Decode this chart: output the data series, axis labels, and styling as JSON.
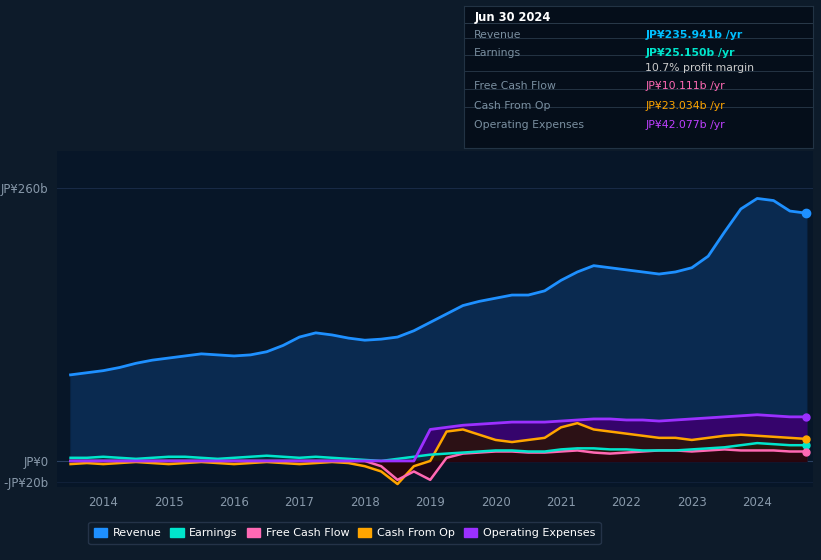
{
  "bg_color": "#0d1b2a",
  "plot_bg_color": "#071628",
  "grid_color": "#1e3050",
  "title_box": {
    "date": "Jun 30 2024",
    "rows": [
      {
        "label": "Revenue",
        "value": "JP¥235.941b /yr",
        "value_color": "#00bfff"
      },
      {
        "label": "Earnings",
        "value": "JP¥25.150b /yr",
        "value_color": "#00e5cc"
      },
      {
        "label": "",
        "value": "10.7% profit margin",
        "value_color": "#cccccc"
      },
      {
        "label": "Free Cash Flow",
        "value": "JP¥10.111b /yr",
        "value_color": "#ff69b4"
      },
      {
        "label": "Cash From Op",
        "value": "JP¥23.034b /yr",
        "value_color": "#ffa500"
      },
      {
        "label": "Operating Expenses",
        "value": "JP¥42.077b /yr",
        "value_color": "#bf40ff"
      }
    ]
  },
  "ylim": [
    -25,
    295
  ],
  "yticks": [
    -20,
    0,
    260
  ],
  "ytick_labels": [
    "-JP¥20b",
    "JP¥0",
    "JP¥260b"
  ],
  "xlim_start": 2013.3,
  "xlim_end": 2024.85,
  "xticks": [
    2014,
    2015,
    2016,
    2017,
    2018,
    2019,
    2020,
    2021,
    2022,
    2023,
    2024
  ],
  "revenue_color": "#1e90ff",
  "earnings_color": "#00e5cc",
  "fcf_color": "#ff69b4",
  "cashop_color": "#ffa500",
  "opex_color": "#9b30ff",
  "revenue": {
    "x": [
      2013.5,
      2013.75,
      2014.0,
      2014.25,
      2014.5,
      2014.75,
      2015.0,
      2015.25,
      2015.5,
      2015.75,
      2016.0,
      2016.25,
      2016.5,
      2016.75,
      2017.0,
      2017.25,
      2017.5,
      2017.75,
      2018.0,
      2018.25,
      2018.5,
      2018.75,
      2019.0,
      2019.25,
      2019.5,
      2019.75,
      2020.0,
      2020.25,
      2020.5,
      2020.75,
      2021.0,
      2021.25,
      2021.5,
      2021.75,
      2022.0,
      2022.25,
      2022.5,
      2022.75,
      2023.0,
      2023.25,
      2023.5,
      2023.75,
      2024.0,
      2024.25,
      2024.5,
      2024.75
    ],
    "y": [
      82,
      84,
      86,
      89,
      93,
      96,
      98,
      100,
      102,
      101,
      100,
      101,
      104,
      110,
      118,
      122,
      120,
      117,
      115,
      116,
      118,
      124,
      132,
      140,
      148,
      152,
      155,
      158,
      158,
      162,
      172,
      180,
      186,
      184,
      182,
      180,
      178,
      180,
      184,
      195,
      218,
      240,
      250,
      248,
      238,
      236
    ]
  },
  "earnings": {
    "x": [
      2013.5,
      2013.75,
      2014.0,
      2014.25,
      2014.5,
      2014.75,
      2015.0,
      2015.25,
      2015.5,
      2015.75,
      2016.0,
      2016.25,
      2016.5,
      2016.75,
      2017.0,
      2017.25,
      2017.5,
      2017.75,
      2018.0,
      2018.25,
      2018.5,
      2018.75,
      2019.0,
      2019.25,
      2019.5,
      2019.75,
      2020.0,
      2020.25,
      2020.5,
      2020.75,
      2021.0,
      2021.25,
      2021.5,
      2021.75,
      2022.0,
      2022.25,
      2022.5,
      2022.75,
      2023.0,
      2023.25,
      2023.5,
      2023.75,
      2024.0,
      2024.25,
      2024.5,
      2024.75
    ],
    "y": [
      3,
      3,
      4,
      3,
      2,
      3,
      4,
      4,
      3,
      2,
      3,
      4,
      5,
      4,
      3,
      4,
      3,
      2,
      1,
      0,
      2,
      4,
      6,
      7,
      8,
      9,
      10,
      10,
      9,
      9,
      11,
      12,
      12,
      11,
      11,
      10,
      10,
      10,
      11,
      12,
      13,
      15,
      17,
      16,
      15,
      15
    ]
  },
  "fcf": {
    "x": [
      2013.5,
      2013.75,
      2014.0,
      2014.25,
      2014.5,
      2014.75,
      2015.0,
      2015.25,
      2015.5,
      2015.75,
      2016.0,
      2016.25,
      2016.5,
      2016.75,
      2017.0,
      2017.25,
      2017.5,
      2017.75,
      2018.0,
      2018.25,
      2018.5,
      2018.75,
      2019.0,
      2019.25,
      2019.5,
      2019.75,
      2020.0,
      2020.25,
      2020.5,
      2020.75,
      2021.0,
      2021.25,
      2021.5,
      2021.75,
      2022.0,
      2022.25,
      2022.5,
      2022.75,
      2023.0,
      2023.25,
      2023.5,
      2023.75,
      2024.0,
      2024.25,
      2024.5,
      2024.75
    ],
    "y": [
      0,
      0,
      0,
      0,
      0,
      0,
      0,
      0,
      0,
      0,
      0,
      0,
      0,
      0,
      0,
      0,
      0,
      0,
      0,
      -5,
      -18,
      -10,
      -18,
      3,
      7,
      8,
      9,
      9,
      8,
      8,
      9,
      10,
      8,
      7,
      8,
      9,
      10,
      10,
      9,
      10,
      11,
      10,
      10,
      10,
      9,
      9
    ]
  },
  "cashop": {
    "x": [
      2013.5,
      2013.75,
      2014.0,
      2014.25,
      2014.5,
      2014.75,
      2015.0,
      2015.25,
      2015.5,
      2015.75,
      2016.0,
      2016.25,
      2016.5,
      2016.75,
      2017.0,
      2017.25,
      2017.5,
      2017.75,
      2018.0,
      2018.25,
      2018.5,
      2018.75,
      2019.0,
      2019.25,
      2019.5,
      2019.75,
      2020.0,
      2020.25,
      2020.5,
      2020.75,
      2021.0,
      2021.25,
      2021.5,
      2021.75,
      2022.0,
      2022.25,
      2022.5,
      2022.75,
      2023.0,
      2023.25,
      2023.5,
      2023.75,
      2024.0,
      2024.25,
      2024.5,
      2024.75
    ],
    "y": [
      -3,
      -2,
      -3,
      -2,
      -1,
      -2,
      -3,
      -2,
      -1,
      -2,
      -3,
      -2,
      -1,
      -2,
      -3,
      -2,
      -1,
      -2,
      -5,
      -10,
      -22,
      -5,
      0,
      28,
      30,
      25,
      20,
      18,
      20,
      22,
      32,
      36,
      30,
      28,
      26,
      24,
      22,
      22,
      20,
      22,
      24,
      25,
      24,
      23,
      22,
      21
    ]
  },
  "opex": {
    "x": [
      2013.5,
      2013.75,
      2014.0,
      2014.25,
      2014.5,
      2014.75,
      2015.0,
      2015.25,
      2015.5,
      2015.75,
      2016.0,
      2016.25,
      2016.5,
      2016.75,
      2017.0,
      2017.25,
      2017.5,
      2017.75,
      2018.0,
      2018.25,
      2018.5,
      2018.75,
      2019.0,
      2019.25,
      2019.5,
      2019.75,
      2020.0,
      2020.25,
      2020.5,
      2020.75,
      2021.0,
      2021.25,
      2021.5,
      2021.75,
      2022.0,
      2022.25,
      2022.5,
      2022.75,
      2023.0,
      2023.25,
      2023.5,
      2023.75,
      2024.0,
      2024.25,
      2024.5,
      2024.75
    ],
    "y": [
      0,
      0,
      0,
      0,
      0,
      0,
      0,
      0,
      0,
      0,
      0,
      0,
      0,
      0,
      0,
      0,
      0,
      0,
      0,
      0,
      0,
      0,
      30,
      32,
      34,
      35,
      36,
      37,
      37,
      37,
      38,
      39,
      40,
      40,
      39,
      39,
      38,
      39,
      40,
      41,
      42,
      43,
      44,
      43,
      42,
      42
    ]
  },
  "legend_items": [
    {
      "label": "Revenue",
      "color": "#1e90ff"
    },
    {
      "label": "Earnings",
      "color": "#00e5cc"
    },
    {
      "label": "Free Cash Flow",
      "color": "#ff69b4"
    },
    {
      "label": "Cash From Op",
      "color": "#ffa500"
    },
    {
      "label": "Operating Expenses",
      "color": "#9b30ff"
    }
  ]
}
